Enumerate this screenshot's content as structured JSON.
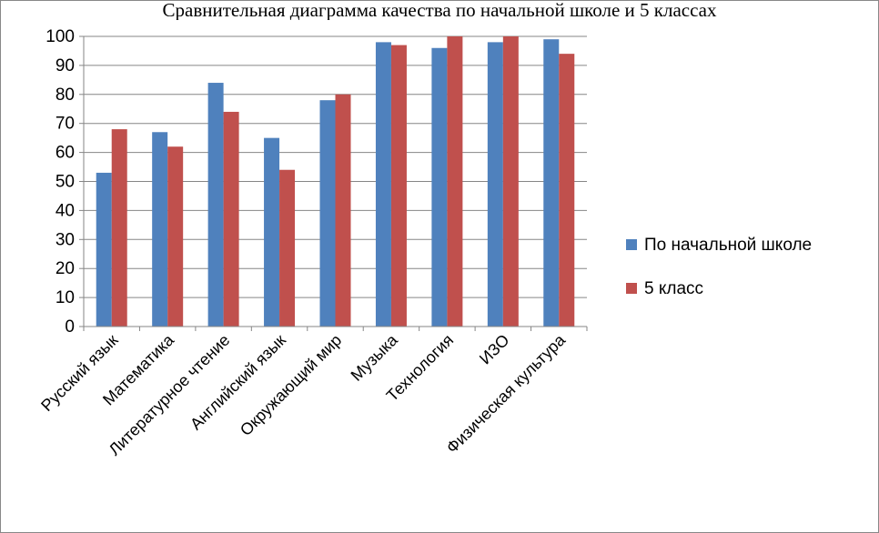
{
  "chart_data": {
    "type": "bar",
    "title": "Сравнительная диаграмма качества по начальной школе и 5 классах",
    "categories": [
      "Русский язык",
      "Математика",
      "Литературное чтение",
      "Английский язык",
      "Окружающий мир",
      "Музыка",
      "Технология",
      "ИЗО",
      "Физическая культура"
    ],
    "series": [
      {
        "name": "По начальной школе",
        "color": "#4f81bd",
        "values": [
          53,
          67,
          84,
          65,
          78,
          98,
          96,
          98,
          99
        ]
      },
      {
        "name": "5 класс",
        "color": "#c0504d",
        "values": [
          68,
          62,
          74,
          54,
          80,
          97,
          100,
          100,
          94
        ]
      }
    ],
    "ylim": [
      0,
      100
    ],
    "yticks": [
      0,
      10,
      20,
      30,
      40,
      50,
      60,
      70,
      80,
      90,
      100
    ],
    "grid": true,
    "legend": "right"
  }
}
